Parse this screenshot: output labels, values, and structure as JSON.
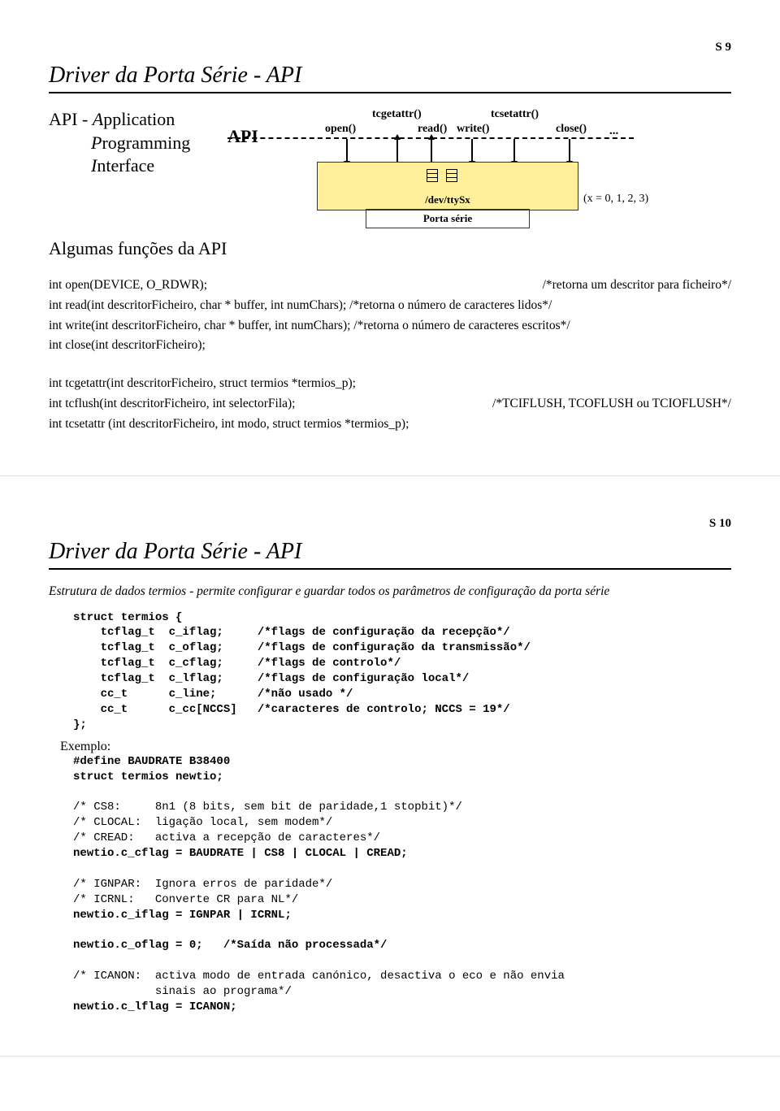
{
  "page1": {
    "pageNum": "S 9",
    "title": "Driver da Porta Série - API",
    "apiLeft": {
      "line1": "API - <i>A</i>pplication",
      "line2": " <i>P</i>rogramming",
      "line3": " <i>I</i>nterface"
    },
    "apiLabel": "API",
    "diagram": {
      "fns": {
        "tcgetattr": "tcgetattr()",
        "tcsetattr": "tcsetattr()",
        "open": "open()",
        "read": "read()",
        "write": "write()",
        "close": "close()"
      },
      "dev": "/dev/ttySx",
      "porta": "Porta série",
      "xnote": "(x = 0, 1, 2, 3)",
      "dots": "...",
      "yellow_color": "#fff099"
    },
    "subTitle": "Algumas funções da API",
    "lines": [
      {
        "l": "int open(DEVICE, O_RDWR);",
        "r": "/*retorna um descritor para ficheiro*/"
      },
      {
        "l": "int read(int descritorFicheiro, char * buffer, int numChars);  /*retorna o número de caracteres lidos*/",
        "r": ""
      },
      {
        "l": "int write(int descritorFicheiro, char * buffer, int numChars); /*retorna o número de caracteres escritos*/",
        "r": ""
      },
      {
        "l": "int close(int descritorFicheiro);",
        "r": ""
      }
    ],
    "lines2": [
      {
        "l": "int tcgetattr(int descritorFicheiro, struct termios *termios_p);",
        "r": ""
      },
      {
        "l": "int tcflush(int descritorFicheiro, int selectorFila);",
        "r": "/*TCIFLUSH, TCOFLUSH ou TCIOFLUSH*/"
      },
      {
        "l": "int tcsetattr (int descritorFicheiro, int modo, struct termios *termios_p);",
        "r": ""
      }
    ]
  },
  "page2": {
    "pageNum": "S 10",
    "title": "Driver da Porta Série - API",
    "descr": "Estrutura de dados <i>termios</i> - permite configurar e guardar todos os parâmetros de configuração da porta série",
    "structBlock": "struct termios {\n    tcflag_t  c_iflag;     /*flags de configuração da recepção*/\n    tcflag_t  c_oflag;     /*flags de configuração da transmissão*/\n    tcflag_t  c_cflag;     /*flags de controlo*/\n    tcflag_t  c_lflag;     /*flags de configuração local*/\n    cc_t      c_line;      /*não usado */\n    cc_t      c_cc[NCCS]   /*caracteres de controlo; NCCS = 19*/\n};",
    "exLabel": "Exemplo:",
    "exBlock": "#define BAUDRATE B38400\nstruct termios newtio;\n\n/* CS8:     8n1 (8 bits, sem bit de paridade,1 stopbit)*/\n/* CLOCAL:  ligação local, sem modem*/\n/* CREAD:   activa a recepção de caracteres*/\nnewtio.c_cflag = BAUDRATE | CS8 | CLOCAL | CREAD;\n\n/* IGNPAR:  Ignora erros de paridade*/\n/* ICRNL:   Converte CR para NL*/\nnewtio.c_iflag = IGNPAR | ICRNL;\n\nnewtio.c_oflag = 0;   /*Saída não processada*/\n\n/* ICANON:  activa modo de entrada canónico, desactiva o eco e não envia\n            sinais ao programa*/\nnewtio.c_lflag = ICANON;"
  }
}
